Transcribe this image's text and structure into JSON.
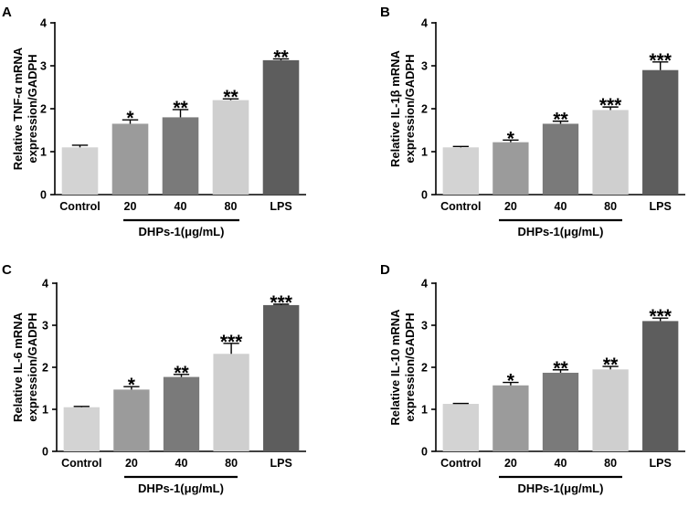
{
  "figure": {
    "group_label": "DHPs-1(μg/mL)",
    "colors": [
      "#d3d3d3",
      "#9b9b9b",
      "#7a7a7a",
      "#cfcfcf",
      "#5d5d5d"
    ]
  },
  "chart_data": [
    {
      "panel": "A",
      "type": "bar",
      "ylabel_line1": "Relative TNF-α mRNA",
      "ylabel_line2": "expression/GADPH",
      "ylim": [
        0,
        4
      ],
      "yticks": [
        "0",
        "1",
        "2",
        "3",
        "4"
      ],
      "categories": [
        "Control",
        "20",
        "40",
        "80",
        "LPS"
      ],
      "values": [
        1.1,
        1.65,
        1.8,
        2.2,
        3.13
      ],
      "errors": [
        0.05,
        0.09,
        0.18,
        0.03,
        0.03
      ],
      "significance": [
        "",
        "*",
        "**",
        "**",
        "**"
      ]
    },
    {
      "panel": "B",
      "type": "bar",
      "ylabel_line1": "Relative IL-1β mRNA",
      "ylabel_line2": "expression/GADPH",
      "ylim": [
        0,
        4
      ],
      "yticks": [
        "0",
        "1",
        "2",
        "3",
        "4"
      ],
      "categories": [
        "Control",
        "20",
        "40",
        "80",
        "LPS"
      ],
      "values": [
        1.1,
        1.22,
        1.65,
        1.97,
        2.9
      ],
      "errors": [
        0.02,
        0.05,
        0.06,
        0.07,
        0.19
      ],
      "significance": [
        "",
        "*",
        "**",
        "***",
        "***"
      ]
    },
    {
      "panel": "C",
      "type": "bar",
      "ylabel_line1": "Relative IL-6 mRNA",
      "ylabel_line2": "expression/GADPH",
      "ylim": [
        0,
        4
      ],
      "yticks": [
        "0",
        "1",
        "2",
        "3",
        "4"
      ],
      "categories": [
        "Control",
        "20",
        "40",
        "80",
        "LPS"
      ],
      "values": [
        1.05,
        1.47,
        1.77,
        2.32,
        3.48
      ],
      "errors": [
        0.02,
        0.07,
        0.06,
        0.25,
        0.02
      ],
      "significance": [
        "",
        "*",
        "**",
        "***",
        "***"
      ]
    },
    {
      "panel": "D",
      "type": "bar",
      "ylabel_line1": "Relative IL-10 mRNA",
      "ylabel_line2": "expression/GADPH",
      "ylim": [
        0,
        4
      ],
      "yticks": [
        "0",
        "1",
        "2",
        "3",
        "4"
      ],
      "categories": [
        "Control",
        "20",
        "40",
        "80",
        "LPS"
      ],
      "values": [
        1.13,
        1.57,
        1.87,
        1.95,
        3.1
      ],
      "errors": [
        0.01,
        0.07,
        0.07,
        0.07,
        0.07
      ],
      "significance": [
        "",
        "*",
        "**",
        "**",
        "***"
      ]
    }
  ]
}
